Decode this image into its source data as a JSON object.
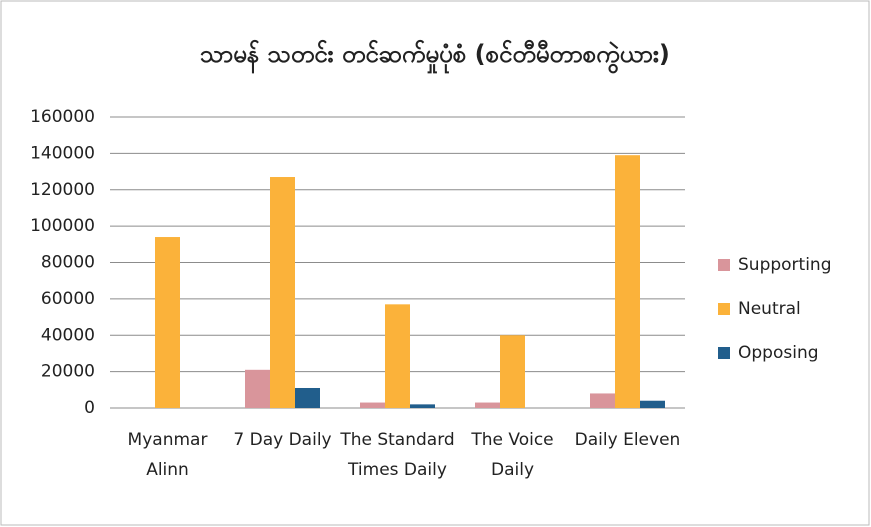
{
  "chart_data": {
    "type": "bar",
    "title": "သာမန် သတင်း တင်ဆက်မှုပုံစံ (စင်တီမီတာစကွဲယား)",
    "categories": [
      "Myanmar Alinn",
      "7 Day Daily",
      "The Standard Times Daily",
      "The Voice Daily",
      "Daily Eleven"
    ],
    "series": [
      {
        "name": "Supporting",
        "color": "#d9959b",
        "values": [
          0,
          21000,
          3000,
          3000,
          8000
        ]
      },
      {
        "name": "Neutral",
        "color": "#fbb23a",
        "values": [
          94000,
          127000,
          57000,
          40000,
          139000
        ]
      },
      {
        "name": "Opposing",
        "color": "#215e8c",
        "values": [
          0,
          11000,
          2000,
          0,
          4000
        ]
      }
    ],
    "ylim": [
      0,
      160000
    ],
    "yticks": [
      0,
      20000,
      40000,
      60000,
      80000,
      100000,
      120000,
      140000,
      160000
    ],
    "grid": true,
    "legend": "right"
  }
}
